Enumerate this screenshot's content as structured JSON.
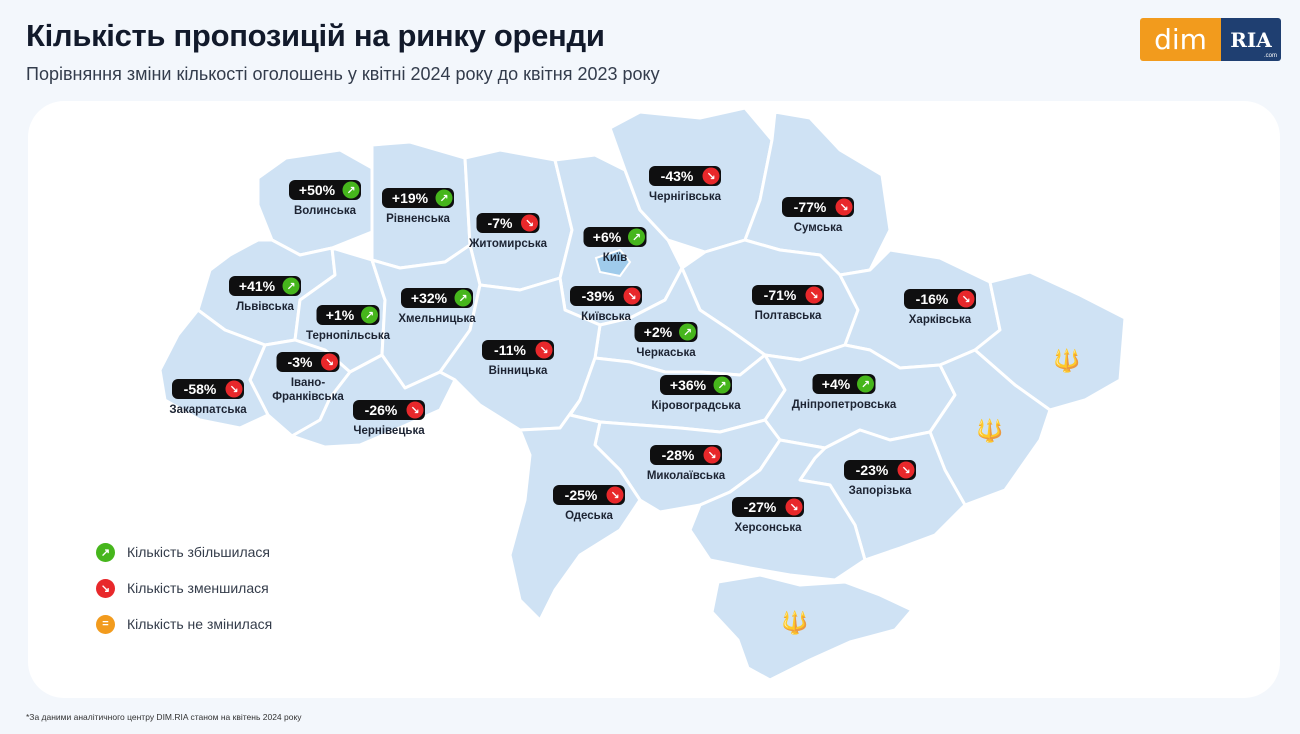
{
  "title": "Кількість пропозицій на ринку оренди",
  "subtitle": "Порівняння зміни кількості оголошень у квітні 2024 року до квітня 2023 року",
  "logo": {
    "dim": "dim",
    "ria": "RIA",
    "ria_sub": ".com"
  },
  "colors": {
    "increase": "#46b61c",
    "decrease": "#e8282b",
    "nochange": "#f29b1d",
    "region": "#cfe2f4",
    "badge": "#0f0f10"
  },
  "icons": {
    "up": "arrow-up-right-icon",
    "down": "arrow-down-right-icon",
    "same": "equals-icon",
    "emblem": "trident-icon"
  },
  "regions": [
    {
      "name": "Волинська",
      "change": "+50%",
      "trend": "up"
    },
    {
      "name": "Рівненська",
      "change": "+19%",
      "trend": "up"
    },
    {
      "name": "Житомирська",
      "change": "-7%",
      "trend": "down"
    },
    {
      "name": "Київ",
      "change": "+6%",
      "trend": "up"
    },
    {
      "name": "Чернігівська",
      "change": "-43%",
      "trend": "down"
    },
    {
      "name": "Сумська",
      "change": "-77%",
      "trend": "down"
    },
    {
      "name": "Львівська",
      "change": "+41%",
      "trend": "up"
    },
    {
      "name": "Тернопільська",
      "change": "+1%",
      "trend": "up"
    },
    {
      "name": "Хмельницька",
      "change": "+32%",
      "trend": "up"
    },
    {
      "name": "Київська",
      "change": "-39%",
      "trend": "down"
    },
    {
      "name": "Полтавська",
      "change": "-71%",
      "trend": "down"
    },
    {
      "name": "Харківська",
      "change": "-16%",
      "trend": "down"
    },
    {
      "name": "Черкаська",
      "change": "+2%",
      "trend": "up"
    },
    {
      "name": "Вінницька",
      "change": "-11%",
      "trend": "down"
    },
    {
      "name": "Івано-Франківська",
      "change": "-3%",
      "trend": "down"
    },
    {
      "name": "Закарпатська",
      "change": "-58%",
      "trend": "down"
    },
    {
      "name": "Чернівецька",
      "change": "-26%",
      "trend": "down"
    },
    {
      "name": "Кіровоградська",
      "change": "+36%",
      "trend": "up"
    },
    {
      "name": "Дніпропетровська",
      "change": "+4%",
      "trend": "up"
    },
    {
      "name": "Миколаївська",
      "change": "-28%",
      "trend": "down"
    },
    {
      "name": "Запорізька",
      "change": "-23%",
      "trend": "down"
    },
    {
      "name": "Одеська",
      "change": "-25%",
      "trend": "down"
    },
    {
      "name": "Херсонська",
      "change": "-27%",
      "trend": "down"
    }
  ],
  "legend": [
    {
      "label": "Кількість збільшилася",
      "trend": "up"
    },
    {
      "label": "Кількість зменшилася",
      "trend": "down"
    },
    {
      "label": "Кількість не змінилася",
      "trend": "same"
    }
  ],
  "footnote": "*За даними аналітичного центру DIM.RIA станом на квітень 2024 року"
}
